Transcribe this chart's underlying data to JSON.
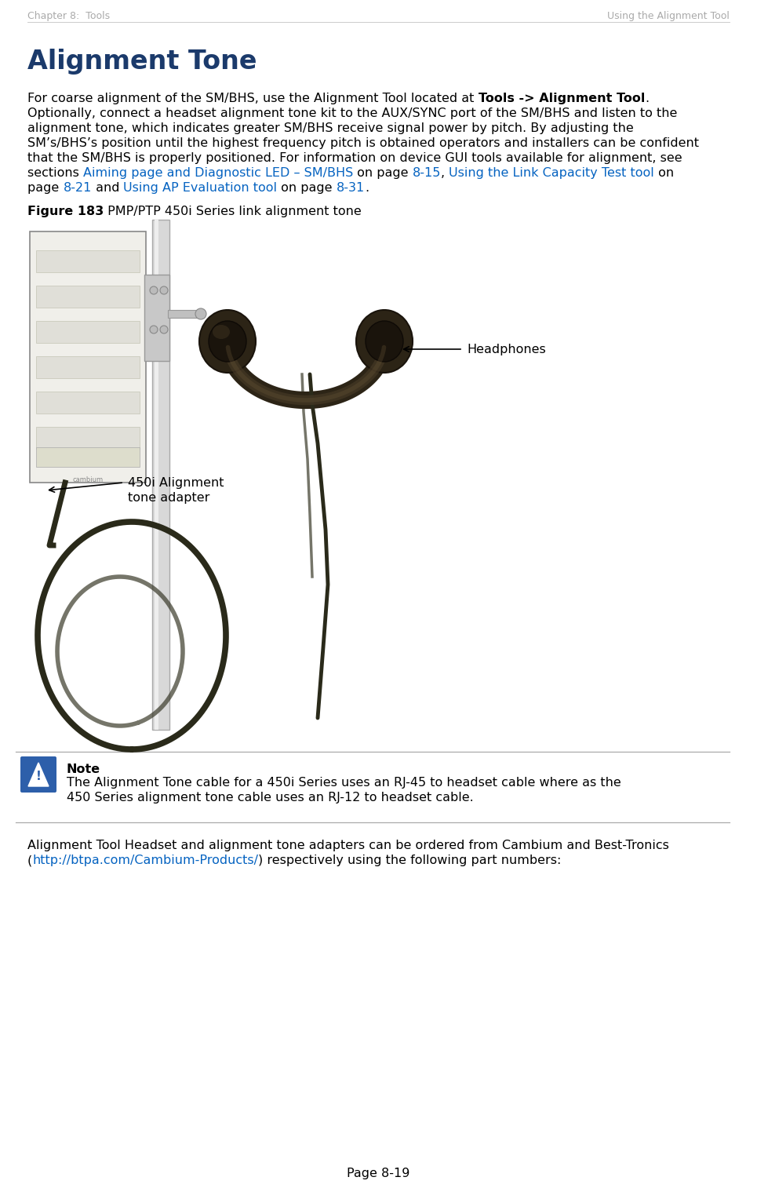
{
  "header_left": "Chapter 8:  Tools",
  "header_right": "Using the Alignment Tool",
  "title": "Alignment Tone",
  "title_color": "#1B3A6B",
  "body_line1_pre": "For coarse alignment of the SM/BHS, use the Alignment Tool located at ",
  "body_line1_bold": "Tools -> Alignment Tool",
  "body_line1_post": ".",
  "body_lines": [
    "Optionally, connect a headset alignment tone kit to the AUX/SYNC port of the SM/BHS and listen to the",
    "alignment tone, which indicates greater SM/BHS receive signal power by pitch. By adjusting the",
    "SM’s/BHS’s position until the highest frequency pitch is obtained operators and installers can be confident",
    "that the SM/BHS is properly positioned. For information on device GUI tools available for alignment, see"
  ],
  "link_line_pre": "sections ",
  "link1_text": "Aiming page and Diagnostic LED – SM/BHS",
  "link1_post": " on page ",
  "link2_text": "8-15",
  "link2_post": ", ",
  "link3_text": "Using the Link Capacity Test tool",
  "link3_post": " on",
  "link_line2_pre": "page ",
  "link4_text": "8-21",
  "link4_post": " and ",
  "link5_text": "Using AP Evaluation tool",
  "link5_post": " on page ",
  "link6_text": "8-31",
  "link6_final": ".",
  "link_color": "#0563C1",
  "figure_bold": "Figure 183",
  "figure_text": " PMP/PTP 450i Series link alignment tone",
  "label_headphones": "Headphones",
  "label_adapter_line1": "450i Alignment",
  "label_adapter_line2": "tone adapter",
  "note_title": "Note",
  "note_line1": "The Alignment Tone cable for a 450i Series uses an RJ-45 to headset cable where as the",
  "note_line2": "450 Series alignment tone cable uses an RJ-12 to headset cable.",
  "footer_line1": "Alignment Tool Headset and alignment tone adapters can be ordered from Cambium and Best-Tronics",
  "footer_line2_pre": "(",
  "footer_link": "http://btpa.com/Cambium-Products/",
  "footer_line2_post": ") respectively using the following part numbers:",
  "page_number": "Page 8-19",
  "bg_color": "#ffffff",
  "text_color": "#000000",
  "header_color": "#aaaaaa",
  "body_fontsize": 11.5,
  "title_fontsize": 24,
  "header_fontsize": 9,
  "caption_fontsize": 11.5,
  "note_icon_color": "#2D5FAA"
}
